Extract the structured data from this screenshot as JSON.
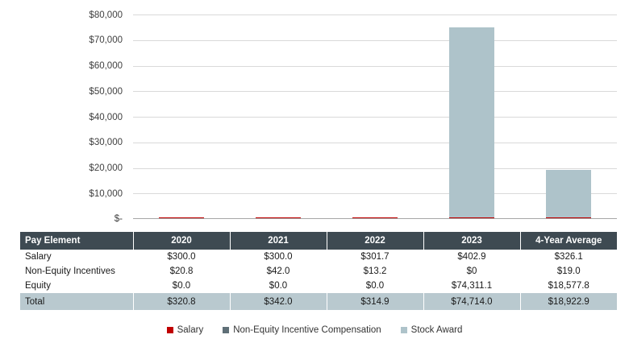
{
  "chart_data": {
    "type": "bar",
    "stacked": true,
    "categories": [
      "2020",
      "2021",
      "2022",
      "2023",
      "4-Year Average"
    ],
    "series": [
      {
        "name": "Salary",
        "color": "#c00000",
        "values": [
          300.0,
          300.0,
          301.7,
          402.9,
          326.1
        ]
      },
      {
        "name": "Non-Equity Incentive Compensation",
        "color": "#5f6f77",
        "values": [
          20.8,
          42.0,
          13.2,
          0,
          19.0
        ]
      },
      {
        "name": "Stock Award",
        "color": "#aec3ca",
        "values": [
          0.0,
          0.0,
          0.0,
          74311.1,
          18577.8
        ]
      }
    ],
    "title": "",
    "xlabel": "",
    "ylabel": "",
    "ylim": [
      0,
      80000
    ],
    "ytick_interval": 10000,
    "ytick_labels": [
      "$-",
      "$10,000",
      "$20,000",
      "$30,000",
      "$40,000",
      "$50,000",
      "$60,000",
      "$70,000",
      "$80,000"
    ],
    "grid": true,
    "legend_position": "bottom"
  },
  "table": {
    "headers": [
      "Pay Element",
      "2020",
      "2021",
      "2022",
      "2023",
      "4-Year Average"
    ],
    "rows": [
      {
        "label": "Salary",
        "values": [
          "$300.0",
          "$300.0",
          "$301.7",
          "$402.9",
          "$326.1"
        ]
      },
      {
        "label": "Non-Equity Incentives",
        "values": [
          "$20.8",
          "$42.0",
          "$13.2",
          "$0",
          "$19.0"
        ]
      },
      {
        "label": "Equity",
        "values": [
          "$0.0",
          "$0.0",
          "$0.0",
          "$74,311.1",
          "$18,577.8"
        ]
      }
    ],
    "total_row": {
      "label": "Total",
      "values": [
        "$320.8",
        "$342.0",
        "$314.9",
        "$74,714.0",
        "$18,922.9"
      ]
    }
  },
  "legend": {
    "items": [
      {
        "label": "Salary",
        "color": "#c00000"
      },
      {
        "label": "Non-Equity Incentive Compensation",
        "color": "#5f6f77"
      },
      {
        "label": "Stock Award",
        "color": "#aec3ca"
      }
    ]
  },
  "colors": {
    "header_bg": "#3e4a52",
    "header_text": "#ffffff",
    "total_row_bg": "#b9c9cf",
    "gridline": "#d9d9d9",
    "axis_line": "#a6a6a6",
    "salary_red": "#c00000",
    "non_equity_gray": "#5f6f77",
    "stock_award_blue_gray": "#aec3ca"
  }
}
